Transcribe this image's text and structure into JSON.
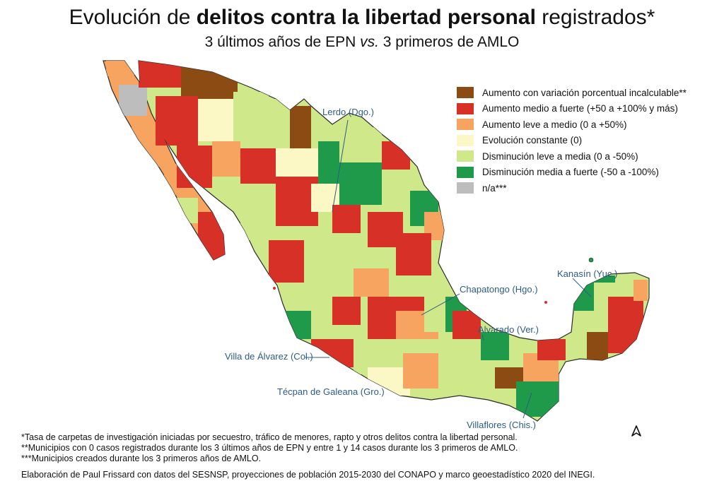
{
  "header": {
    "title_pre": "Evolución de ",
    "title_bold": "delitos contra la libertad personal",
    "title_post": " registrados*",
    "subtitle_pre": "3 últimos años de EPN ",
    "subtitle_em": "vs.",
    "subtitle_post": " 3 primeros de AMLO"
  },
  "legend": [
    {
      "label": "Aumento con variación porcentual incalculable**",
      "color": "#8b4b12"
    },
    {
      "label": "Aumento medio a fuerte (+50 a +100% y más)",
      "color": "#d63027"
    },
    {
      "label": "Aumento leve a medio (0 a +50%)",
      "color": "#f6a45f"
    },
    {
      "label": "Evolución constante (0)",
      "color": "#fbf8c6"
    },
    {
      "label": "Disminución leve a media (0 a -50%)",
      "color": "#cfe98a"
    },
    {
      "label": "Disminución media a fuerte (-50 a -100%)",
      "color": "#1f9a4b"
    },
    {
      "label": "n/a***",
      "color": "#bdbdbd"
    }
  ],
  "callouts": [
    {
      "label": "Lerdo (Dgo.)"
    },
    {
      "label": "Kanasín (Yuc.)"
    },
    {
      "label": "Chapatongo (Hgo.)"
    },
    {
      "label": "Alvarado (Ver.)"
    },
    {
      "label": "Villa de Álvarez (Col.)"
    },
    {
      "label": "Técpan de Galeana (Gro.)"
    },
    {
      "label": "Villaflores (Chis.)"
    }
  ],
  "north_arrow": "north-arrow-icon",
  "notes": [
    "*Tasa de carpetas de investigación iniciadas por secuestro, tráfico de menores, rapto y otros delitos contra la libertad personal.",
    "**Municipios con 0 casos registrados durante los 3 últimos años de EPN y entre 1 y 14 casos durante los 3 primeros de AMLO.",
    "***Municipios creados durante los 3 primeros años de AMLO."
  ],
  "credit": "Elaboración de Paul Frissard con datos del SESNSP, proyecciones de población 2015-2030 del CONAPO y marco geoestadístico 2020 del INEGI."
}
